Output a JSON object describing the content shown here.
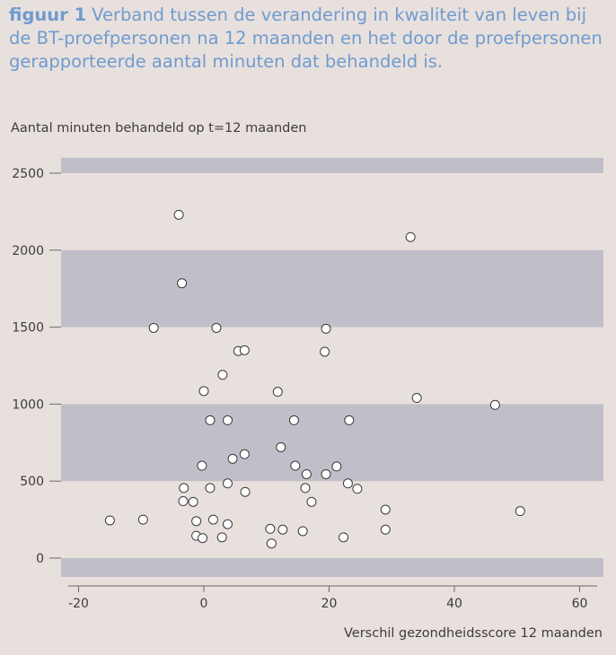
{
  "caption": {
    "label": "figuur 1",
    "text": "Verband tussen de verandering in kwaliteit van leven bij de BT-proefpersonen na 12 maanden en het door de proefpersonen gerapporteerde aantal minuten dat behandeld is."
  },
  "chart_data": {
    "type": "scatter",
    "title": "Verband tussen de verandering in kwaliteit van leven bij de BT-proefpersonen na 12 maanden en het door de proefpersonen gerapporteerde aantal minuten dat behandeld is.",
    "xlabel": "Verschil gezondheidsscore 12 maanden",
    "ylabel": "Aantal minuten behandeld op t=12 maanden",
    "xlim": [
      -25,
      63
    ],
    "ylim": [
      -150,
      2600
    ],
    "xticks": [
      -20,
      0,
      20,
      40,
      60
    ],
    "xtick_labels": [
      "-20",
      "0",
      "20",
      "40",
      "60"
    ],
    "yticks": [
      0,
      500,
      1000,
      1500,
      2000,
      2500
    ],
    "ytick_labels": [
      "0",
      "500",
      "1000",
      "1500",
      "2000",
      "2500"
    ],
    "bands": [
      [
        -150,
        0
      ],
      [
        500,
        1000
      ],
      [
        1500,
        2000
      ],
      [
        2500,
        2600
      ]
    ],
    "grid": false,
    "colors": {
      "background": "#e8e0dd",
      "band": "#c0bec8",
      "point_fill": "#ffffff",
      "point_stroke": "#3a3a3a",
      "axis": "#6a6a6a",
      "caption": "#6f9bcf"
    },
    "points": [
      [
        -4,
        2230
      ],
      [
        -3.5,
        1785
      ],
      [
        -8,
        1495
      ],
      [
        2,
        1495
      ],
      [
        5.5,
        1345
      ],
      [
        6.5,
        1350
      ],
      [
        19.5,
        1490
      ],
      [
        19.3,
        1340
      ],
      [
        33,
        2085
      ],
      [
        3,
        1190
      ],
      [
        0,
        1085
      ],
      [
        11.8,
        1080
      ],
      [
        34,
        1040
      ],
      [
        46.5,
        995
      ],
      [
        1,
        895
      ],
      [
        3.8,
        895
      ],
      [
        14.4,
        895
      ],
      [
        23.2,
        895
      ],
      [
        12.3,
        720
      ],
      [
        6.5,
        675
      ],
      [
        4.6,
        645
      ],
      [
        -0.3,
        600
      ],
      [
        14.6,
        600
      ],
      [
        21.2,
        595
      ],
      [
        16.4,
        545
      ],
      [
        19.5,
        545
      ],
      [
        3.8,
        485
      ],
      [
        23,
        485
      ],
      [
        -3.2,
        455
      ],
      [
        1,
        455
      ],
      [
        16.2,
        455
      ],
      [
        24.5,
        450
      ],
      [
        6.6,
        430
      ],
      [
        -3.3,
        370
      ],
      [
        -1.7,
        365
      ],
      [
        17.2,
        365
      ],
      [
        29,
        315
      ],
      [
        50.5,
        305
      ],
      [
        -15,
        245
      ],
      [
        -9.7,
        250
      ],
      [
        -1.2,
        240
      ],
      [
        1.5,
        250
      ],
      [
        3.8,
        220
      ],
      [
        10.6,
        190
      ],
      [
        12.6,
        185
      ],
      [
        15.8,
        175
      ],
      [
        29,
        185
      ],
      [
        -1.2,
        145
      ],
      [
        -0.2,
        130
      ],
      [
        2.9,
        135
      ],
      [
        22.3,
        135
      ],
      [
        10.8,
        95
      ]
    ]
  }
}
